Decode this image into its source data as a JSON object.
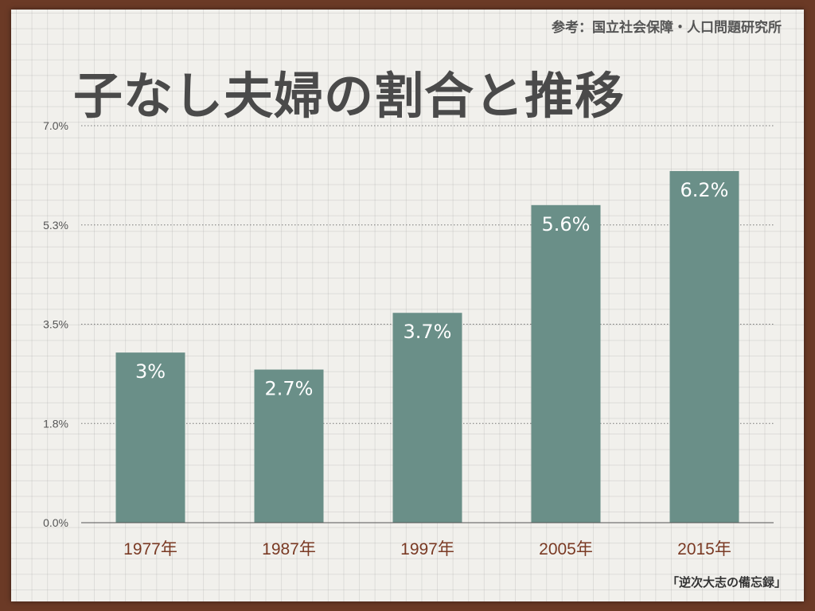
{
  "source_label": "参考：国立社会保障・人口問題研究所",
  "footer_label": "「逆次大志の備忘録」",
  "colors": {
    "bar": "#6a8f88",
    "x_label": "#7a3a24",
    "frame": "#6b3a26"
  },
  "chart_data": {
    "type": "bar",
    "title": "子なし夫婦の割合と推移",
    "categories": [
      "1977年",
      "1987年",
      "1997年",
      "2005年",
      "2015年"
    ],
    "values": [
      3,
      2.7,
      3.7,
      5.6,
      6.2
    ],
    "value_labels": [
      "3%",
      "2.7%",
      "3.7%",
      "5.6%",
      "6.2%"
    ],
    "y_ticks": [
      "0.0%",
      "1.8%",
      "3.5%",
      "5.3%",
      "7.0%"
    ],
    "ylim": [
      0,
      7.0
    ],
    "grid": true,
    "xlabel": "",
    "ylabel": ""
  }
}
